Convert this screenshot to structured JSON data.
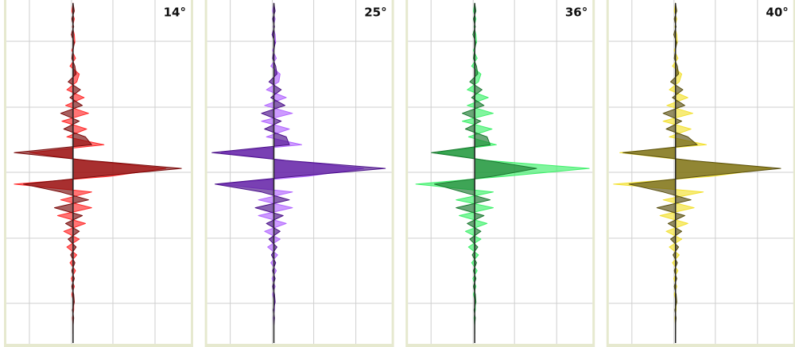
{
  "chart_data": [
    {
      "type": "area",
      "title": "14°",
      "xlim": [
        -1,
        1.85
      ],
      "ylim": [
        0,
        432
      ],
      "x": [
        0,
        10,
        20,
        30,
        40,
        50,
        60,
        70,
        80,
        90,
        100,
        110,
        120,
        130,
        140,
        150,
        160,
        170,
        180,
        190,
        200,
        210,
        220,
        230,
        240,
        250,
        260,
        270,
        280,
        290,
        300,
        310,
        320,
        330,
        340,
        350,
        360,
        370,
        380,
        390,
        400,
        410,
        420
      ],
      "series": [
        {
          "color": "#ff2a2a",
          "values": [
            0,
            -0.02,
            0.02,
            -0.01,
            0.02,
            0.03,
            -0.02,
            0.04,
            -0.05,
            0.1,
            0.06,
            -0.1,
            0.18,
            -0.12,
            0.25,
            -0.18,
            0.22,
            -0.1,
            0.5,
            -0.7,
            0.2,
            1.5,
            0.6,
            -0.95,
            0.3,
            -0.2,
            0.3,
            -0.25,
            0.2,
            -0.15,
            0.1,
            -0.1,
            0.06,
            -0.05,
            0.04,
            -0.03,
            0.02,
            -0.02,
            0.01,
            0.01,
            -0.01,
            0,
            0
          ]
        },
        {
          "color": "#7a0a0a",
          "values": [
            0,
            0.02,
            -0.02,
            0.01,
            -0.03,
            0.02,
            0,
            -0.02,
            0.03,
            0.05,
            -0.08,
            0.12,
            -0.05,
            0.15,
            -0.2,
            0.1,
            -0.15,
            0.2,
            0.3,
            -0.95,
            0.25,
            1.75,
            0.4,
            -0.8,
            -0.2,
            0.25,
            -0.3,
            0.15,
            -0.12,
            0.1,
            -0.08,
            0.05,
            -0.04,
            0.03,
            -0.02,
            0.02,
            -0.02,
            0.01,
            0.02,
            -0.01,
            0.01,
            0,
            0
          ]
        }
      ]
    },
    {
      "type": "area",
      "title": "25°",
      "xlim": [
        -1,
        1.85
      ],
      "ylim": [
        0,
        432
      ],
      "x": [
        0,
        10,
        20,
        30,
        40,
        50,
        60,
        70,
        80,
        90,
        100,
        110,
        120,
        130,
        140,
        150,
        160,
        170,
        180,
        190,
        200,
        210,
        220,
        230,
        240,
        250,
        260,
        270,
        280,
        290,
        300,
        310,
        320,
        330,
        340,
        350,
        360,
        370,
        380,
        390,
        400,
        410,
        420
      ],
      "series": [
        {
          "color": "#b266ff",
          "values": [
            0,
            -0.02,
            0.02,
            -0.01,
            0.02,
            0.03,
            -0.02,
            0.04,
            -0.05,
            0.1,
            0.08,
            -0.12,
            0.2,
            -0.15,
            0.3,
            -0.2,
            0.25,
            -0.12,
            0.45,
            -0.85,
            0.2,
            1.45,
            0.55,
            -0.9,
            0.3,
            -0.25,
            0.3,
            -0.25,
            0.2,
            -0.15,
            0.1,
            -0.1,
            0.06,
            -0.05,
            0.04,
            -0.03,
            0.02,
            -0.02,
            0.01,
            0.01,
            -0.01,
            0,
            0
          ]
        },
        {
          "color": "#4b108a",
          "values": [
            0,
            0.02,
            -0.02,
            0.01,
            -0.03,
            0.02,
            0,
            -0.02,
            0.03,
            0.05,
            -0.08,
            0.12,
            -0.05,
            0.18,
            -0.2,
            0.12,
            -0.15,
            0.2,
            0.25,
            -1.0,
            0.2,
            1.8,
            0.35,
            -0.95,
            -0.2,
            0.25,
            -0.3,
            0.15,
            -0.12,
            0.1,
            -0.08,
            0.05,
            -0.04,
            0.03,
            -0.02,
            0.02,
            -0.02,
            0.01,
            0.02,
            -0.01,
            0.01,
            0,
            0
          ]
        }
      ]
    },
    {
      "type": "area",
      "title": "36°",
      "xlim": [
        -1,
        1.85
      ],
      "ylim": [
        0,
        432
      ],
      "x": [
        0,
        10,
        20,
        30,
        40,
        50,
        60,
        70,
        80,
        90,
        100,
        110,
        120,
        130,
        140,
        150,
        160,
        170,
        180,
        190,
        200,
        210,
        220,
        230,
        240,
        250,
        260,
        270,
        280,
        290,
        300,
        310,
        320,
        330,
        340,
        350,
        360,
        370,
        380,
        390,
        400,
        410,
        420
      ],
      "series": [
        {
          "color": "#3ef06a",
          "values": [
            0,
            -0.02,
            0.02,
            -0.01,
            0.02,
            0.03,
            -0.02,
            0.04,
            -0.05,
            0.1,
            0.06,
            -0.12,
            0.22,
            -0.12,
            0.3,
            -0.2,
            0.28,
            -0.1,
            0.35,
            -0.6,
            0.2,
            1.85,
            0.5,
            -0.95,
            0.3,
            -0.3,
            0.3,
            -0.25,
            0.2,
            -0.15,
            0.1,
            -0.1,
            0.06,
            -0.05,
            0.04,
            -0.03,
            0.02,
            -0.02,
            0.01,
            0.01,
            -0.01,
            0,
            0
          ]
        },
        {
          "color": "#1a7a30",
          "values": [
            0,
            0.02,
            -0.02,
            0.01,
            -0.03,
            0.02,
            0,
            -0.02,
            0.03,
            0.05,
            -0.08,
            0.12,
            -0.05,
            0.15,
            -0.2,
            0.1,
            -0.15,
            0.2,
            0.25,
            -0.7,
            0.2,
            1.0,
            0.3,
            -0.65,
            -0.2,
            0.25,
            -0.3,
            0.15,
            -0.12,
            0.1,
            -0.08,
            0.05,
            -0.04,
            0.03,
            -0.02,
            0.02,
            -0.02,
            0.01,
            0.02,
            -0.01,
            0.01,
            0,
            0
          ]
        }
      ]
    },
    {
      "type": "area",
      "title": "40°",
      "xlim": [
        -1,
        1.85
      ],
      "ylim": [
        0,
        432
      ],
      "x": [
        0,
        10,
        20,
        30,
        40,
        50,
        60,
        70,
        80,
        90,
        100,
        110,
        120,
        130,
        140,
        150,
        160,
        170,
        180,
        190,
        200,
        210,
        220,
        230,
        240,
        250,
        260,
        270,
        280,
        290,
        300,
        310,
        320,
        330,
        340,
        350,
        360,
        370,
        380,
        390,
        400,
        410,
        420
      ],
      "series": [
        {
          "color": "#f2e030",
          "values": [
            0,
            -0.02,
            0.02,
            -0.01,
            0.02,
            0.03,
            -0.02,
            0.04,
            -0.05,
            0.1,
            0.06,
            -0.1,
            0.2,
            -0.14,
            0.28,
            -0.2,
            0.25,
            -0.1,
            0.5,
            -0.9,
            0.2,
            1.55,
            0.6,
            -1.0,
            0.45,
            -0.2,
            0.3,
            -0.25,
            0.2,
            -0.15,
            0.1,
            -0.1,
            0.06,
            -0.05,
            0.04,
            -0.03,
            0.02,
            -0.02,
            0.01,
            0.01,
            -0.01,
            0,
            0
          ]
        },
        {
          "color": "#5a5010",
          "values": [
            0,
            0.02,
            -0.02,
            0.01,
            -0.03,
            0.02,
            0,
            -0.02,
            0.03,
            0.05,
            -0.08,
            0.12,
            -0.05,
            0.15,
            -0.2,
            0.1,
            -0.15,
            0.2,
            0.35,
            -0.85,
            0.25,
            1.7,
            0.4,
            -0.75,
            -0.2,
            0.25,
            -0.3,
            0.15,
            -0.12,
            0.1,
            -0.08,
            0.05,
            -0.04,
            0.03,
            -0.02,
            0.02,
            -0.02,
            0.01,
            0.02,
            -0.01,
            0.01,
            0,
            0
          ]
        }
      ]
    }
  ]
}
